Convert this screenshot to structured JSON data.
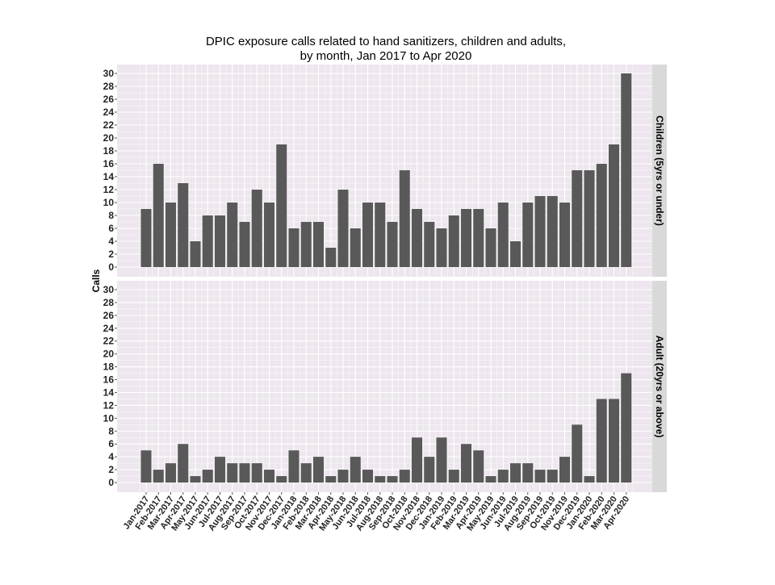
{
  "chart_data": {
    "type": "bar",
    "title_line1": "DPIC exposure calls related to hand sanitizers, children and adults,",
    "title_line2": "by month, Jan 2017 to Apr 2020",
    "ylabel": "Calls",
    "xlabel": "",
    "ylim": [
      0,
      30
    ],
    "yticks": [
      0,
      2,
      4,
      6,
      8,
      10,
      12,
      14,
      16,
      18,
      20,
      22,
      24,
      26,
      28,
      30
    ],
    "grid": true,
    "bar_color": "#595959",
    "panel_bg": "#ede6ee",
    "strip_bg": "#d9d9d9",
    "categories": [
      "Jan-2017",
      "Feb-2017",
      "Mar-2017",
      "Apr-2017",
      "May-2017",
      "Jun-2017",
      "Jul-2017",
      "Aug-2017",
      "Sep-2017",
      "Oct-2017",
      "Nov-2017",
      "Dec-2017",
      "Jan-2018",
      "Feb-2018",
      "Mar-2018",
      "Apr-2018",
      "May-2018",
      "Jun-2018",
      "Jul-2018",
      "Aug-2018",
      "Sep-2018",
      "Oct-2018",
      "Nov-2018",
      "Dec-2018",
      "Jan-2019",
      "Feb-2019",
      "Mar-2019",
      "Apr-2019",
      "May-2019",
      "Jun-2019",
      "Jul-2019",
      "Aug-2019",
      "Sep-2019",
      "Oct-2019",
      "Nov-2019",
      "Dec-2019",
      "Jan-2020",
      "Feb-2020",
      "Mar-2020",
      "Apr-2020"
    ],
    "series": [
      {
        "name": "Children (5yrs or under)",
        "values": [
          9,
          16,
          10,
          13,
          4,
          8,
          8,
          10,
          7,
          12,
          10,
          19,
          6,
          7,
          7,
          3,
          12,
          6,
          10,
          10,
          7,
          15,
          9,
          7,
          6,
          8,
          9,
          9,
          6,
          10,
          4,
          10,
          11,
          11,
          10,
          15,
          15,
          16,
          19,
          30
        ]
      },
      {
        "name": "Adult (20yrs or above)",
        "values": [
          5,
          2,
          3,
          6,
          1,
          2,
          4,
          3,
          3,
          3,
          2,
          1,
          5,
          3,
          4,
          1,
          2,
          4,
          2,
          1,
          1,
          2,
          7,
          4,
          7,
          2,
          6,
          5,
          1,
          2,
          3,
          3,
          2,
          2,
          4,
          9,
          1,
          13,
          13,
          17
        ]
      }
    ]
  }
}
